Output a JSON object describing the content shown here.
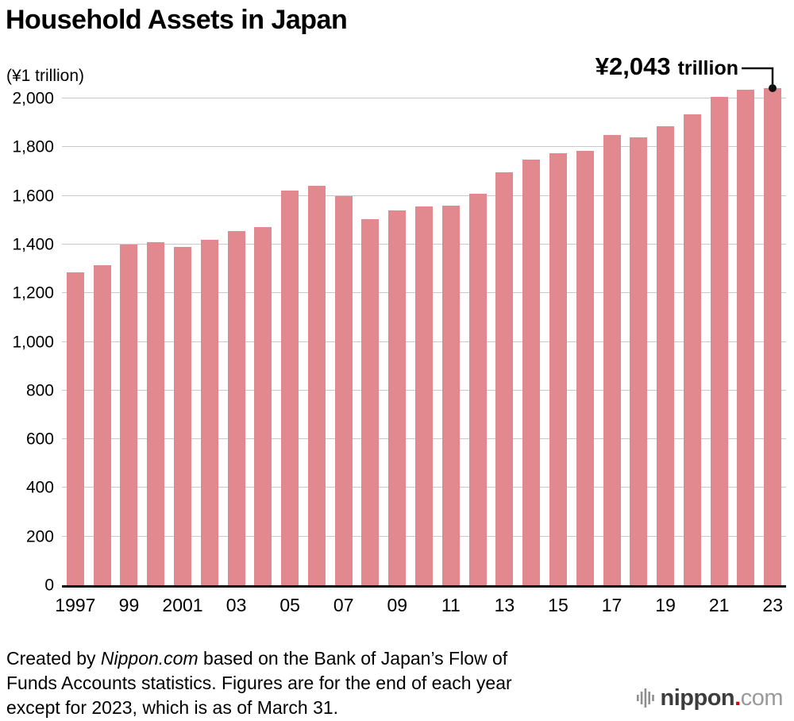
{
  "title": "Household Assets in Japan",
  "unit_label": "(¥1 trillion)",
  "annotation": {
    "value": "¥2,043",
    "suffix": "trillion"
  },
  "footer": {
    "line1_prefix": "Created by ",
    "line1_italic": "Nippon.com",
    "line1_rest": " based on the Bank of Japan’s Flow of",
    "line2": "Funds Accounts statistics. Figures are for the end of each year",
    "line3": "except for 2023, which is as of March 31."
  },
  "logo": {
    "brand": "nippon",
    "dot": ".",
    "tld": "com",
    "icon": "equalizer-bars-icon"
  },
  "colors": {
    "bar": "#e2898f",
    "grid": "#c9c9c9",
    "axis": "#101010",
    "annotation_dot": "#101010",
    "logo_dot": "#d7000f"
  },
  "chart_data": {
    "type": "bar",
    "title": "Household Assets in Japan",
    "ylabel": "(¥1 trillion)",
    "xlabel": "",
    "grid": true,
    "legend": "none",
    "ylim": [
      0,
      2100
    ],
    "ytick_interval": 200,
    "ytick_max_labeled": 2000,
    "x": [
      1997,
      1998,
      1999,
      2000,
      2001,
      2002,
      2003,
      2004,
      2005,
      2006,
      2007,
      2008,
      2009,
      2010,
      2011,
      2012,
      2013,
      2014,
      2015,
      2016,
      2017,
      2018,
      2019,
      2020,
      2021,
      2022,
      2023
    ],
    "values": [
      1285,
      1315,
      1400,
      1410,
      1390,
      1420,
      1455,
      1470,
      1620,
      1640,
      1600,
      1505,
      1540,
      1555,
      1560,
      1610,
      1695,
      1750,
      1775,
      1785,
      1850,
      1840,
      1885,
      1935,
      2005,
      2035,
      2043
    ],
    "xtick_labels": [
      "1997",
      "99",
      "2001",
      "03",
      "05",
      "07",
      "09",
      "11",
      "13",
      "15",
      "17",
      "19",
      "21",
      "23"
    ],
    "xtick_indices": [
      0,
      2,
      4,
      6,
      8,
      10,
      12,
      14,
      16,
      18,
      20,
      22,
      24,
      26
    ],
    "annotation": {
      "x": 2023,
      "value": 2043,
      "label": "¥2,043 trillion",
      "note": "2023 figure is as of March 31"
    }
  }
}
